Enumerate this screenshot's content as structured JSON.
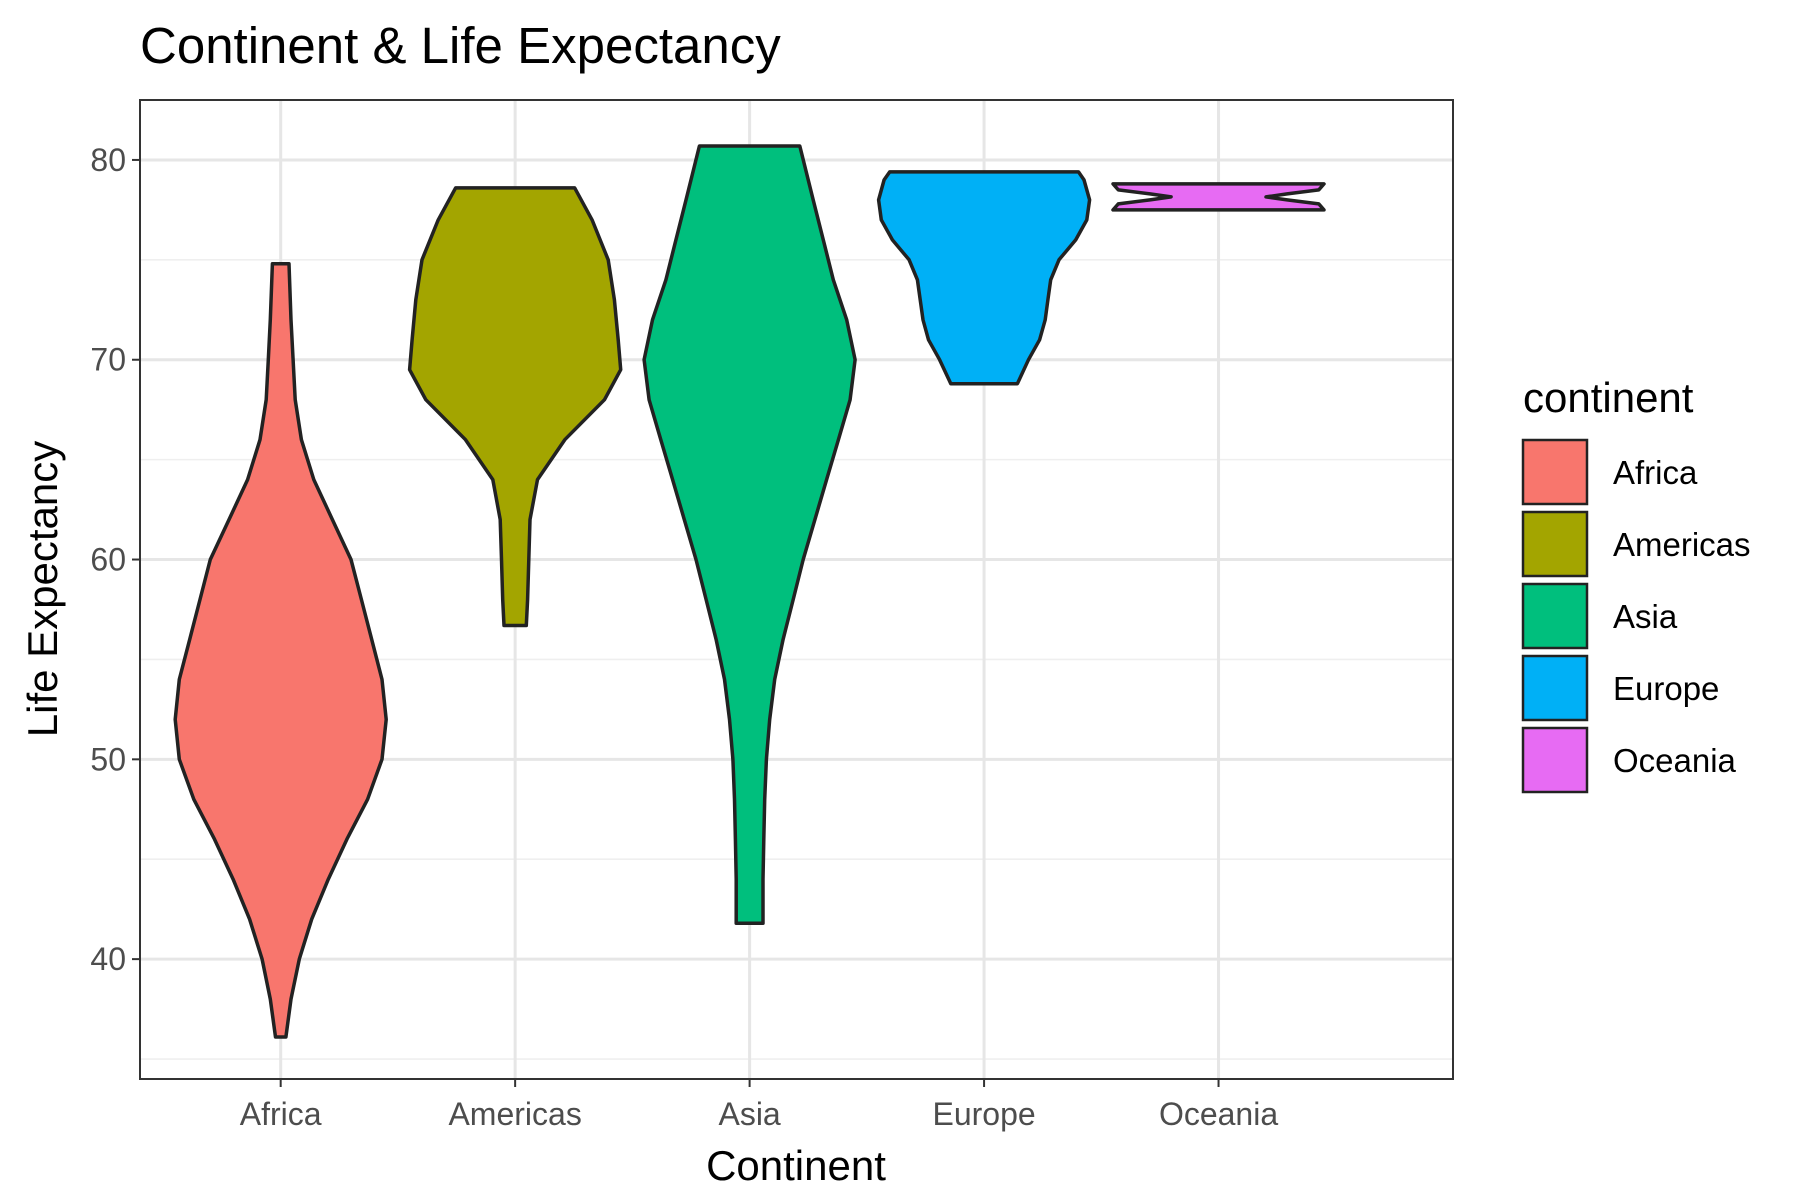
{
  "chart_data": {
    "type": "violin",
    "title": "Continent & Life Expectancy",
    "xlabel": "Continent",
    "ylabel": "Life Expectancy",
    "categories": [
      "Africa",
      "Americas",
      "Asia",
      "Europe",
      "Oceania"
    ],
    "y_ticks": [
      40,
      50,
      60,
      70,
      80
    ],
    "ylim": [
      34,
      83
    ],
    "grid": true,
    "legend": {
      "title": "continent",
      "placement": "right",
      "entries": [
        "Africa",
        "Americas",
        "Asia",
        "Europe",
        "Oceania"
      ]
    },
    "colors": {
      "Africa": "#F8766D",
      "Americas": "#A3A500",
      "Asia": "#00BF7D",
      "Europe": "#00B0F6",
      "Oceania": "#E76BF3"
    },
    "series": [
      {
        "name": "Africa",
        "min": 36.1,
        "max": 74.8,
        "density": [
          [
            36.1,
            0.25
          ],
          [
            38,
            0.5
          ],
          [
            40,
            0.9
          ],
          [
            42,
            1.5
          ],
          [
            44,
            2.3
          ],
          [
            46,
            3.2
          ],
          [
            48,
            4.2
          ],
          [
            50,
            4.9
          ],
          [
            52,
            5.1
          ],
          [
            54,
            4.9
          ],
          [
            56,
            4.4
          ],
          [
            58,
            3.9
          ],
          [
            60,
            3.4
          ],
          [
            62,
            2.5
          ],
          [
            64,
            1.6
          ],
          [
            66,
            1.0
          ],
          [
            68,
            0.7
          ],
          [
            70,
            0.6
          ],
          [
            72,
            0.5
          ],
          [
            74.8,
            0.4
          ]
        ]
      },
      {
        "name": "Americas",
        "min": 56.7,
        "max": 78.6,
        "density": [
          [
            56.7,
            0.9
          ],
          [
            58,
            1.0
          ],
          [
            60,
            1.1
          ],
          [
            62,
            1.2
          ],
          [
            64,
            1.8
          ],
          [
            66,
            4.0
          ],
          [
            68,
            7.2
          ],
          [
            69.5,
            8.5
          ],
          [
            71,
            8.3
          ],
          [
            73,
            8.0
          ],
          [
            75,
            7.5
          ],
          [
            77,
            6.2
          ],
          [
            78.6,
            4.8
          ]
        ]
      },
      {
        "name": "Asia",
        "min": 41.8,
        "max": 80.7,
        "density": [
          [
            41.8,
            0.8
          ],
          [
            44,
            0.8
          ],
          [
            46,
            0.85
          ],
          [
            48,
            0.9
          ],
          [
            50,
            1.0
          ],
          [
            52,
            1.2
          ],
          [
            54,
            1.5
          ],
          [
            56,
            2.0
          ],
          [
            58,
            2.6
          ],
          [
            60,
            3.2
          ],
          [
            62,
            3.9
          ],
          [
            64,
            4.6
          ],
          [
            66,
            5.3
          ],
          [
            68,
            6.0
          ],
          [
            70,
            6.3
          ],
          [
            72,
            5.8
          ],
          [
            74,
            5.0
          ],
          [
            76,
            4.4
          ],
          [
            78,
            3.8
          ],
          [
            80.7,
            3.0
          ]
        ]
      },
      {
        "name": "Europe",
        "min": 68.8,
        "max": 79.4,
        "density": [
          [
            68.8,
            6.0
          ],
          [
            70,
            8.0
          ],
          [
            71,
            10.0
          ],
          [
            72,
            11.0
          ],
          [
            73,
            11.5
          ],
          [
            74,
            12.0
          ],
          [
            75,
            13.5
          ],
          [
            76,
            16.5
          ],
          [
            77,
            18.5
          ],
          [
            78,
            19.0
          ],
          [
            79,
            18.0
          ],
          [
            79.4,
            17.0
          ]
        ]
      },
      {
        "name": "Oceania",
        "min": 77.5,
        "max": 78.8,
        "density": [
          [
            77.5,
            100
          ],
          [
            77.8,
            95
          ],
          [
            78.0,
            65
          ],
          [
            78.15,
            45
          ],
          [
            78.3,
            65
          ],
          [
            78.5,
            95
          ],
          [
            78.8,
            100
          ]
        ]
      }
    ]
  }
}
